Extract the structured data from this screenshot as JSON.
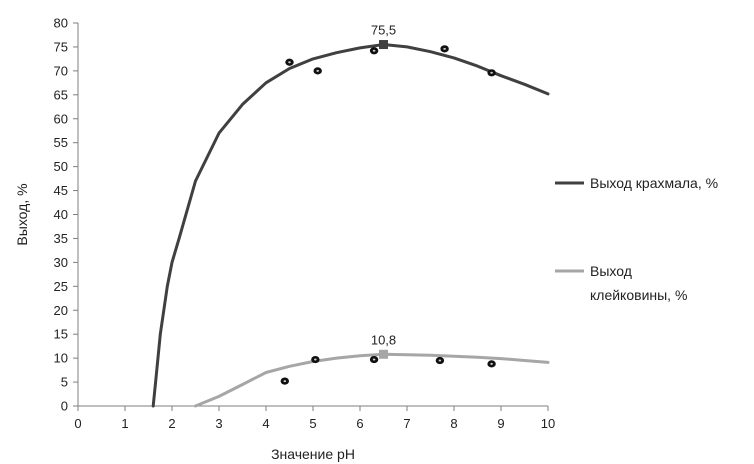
{
  "chart_data": {
    "type": "line",
    "xlabel": "Значение pH",
    "ylabel": "Выход, %",
    "xlim": [
      0,
      10
    ],
    "ylim": [
      0,
      80
    ],
    "x_ticks": [
      0,
      1,
      2,
      3,
      4,
      5,
      6,
      7,
      8,
      9,
      10
    ],
    "y_ticks": [
      0,
      5,
      10,
      15,
      20,
      25,
      30,
      35,
      40,
      45,
      50,
      55,
      60,
      65,
      70,
      75,
      80
    ],
    "grid": false,
    "legend_position": "right",
    "series": [
      {
        "name": "Выход крахмала, %",
        "name_lines": [
          "Выход крахмала, %"
        ],
        "color": "#404040",
        "x": [
          1.6,
          1.65,
          1.75,
          1.9,
          2.0,
          2.15,
          2.5,
          3.0,
          3.5,
          4.0,
          4.5,
          5.0,
          5.5,
          6.0,
          6.5,
          7.0,
          7.5,
          8.0,
          8.5,
          9.0,
          9.5,
          10.0
        ],
        "values": [
          0,
          5,
          15,
          25,
          30,
          35,
          47,
          57,
          63,
          67.5,
          70.5,
          72.5,
          73.8,
          74.8,
          75.5,
          75,
          74,
          72.7,
          71,
          69,
          67.2,
          65.2
        ],
        "peak": {
          "x": 6.5,
          "y": 75.5,
          "label": "75,5"
        },
        "points": [
          {
            "x": 4.5,
            "y": 71.8
          },
          {
            "x": 5.1,
            "y": 70.0
          },
          {
            "x": 6.3,
            "y": 74.2
          },
          {
            "x": 7.8,
            "y": 74.6
          },
          {
            "x": 8.8,
            "y": 69.6
          }
        ]
      },
      {
        "name": "Выход клейковины, %",
        "name_lines": [
          "Выход",
          "клейковины, %"
        ],
        "color": "#a6a6a6",
        "x": [
          2.5,
          3.0,
          3.5,
          4.0,
          4.5,
          5.0,
          5.5,
          6.0,
          6.5,
          7.0,
          7.5,
          8.0,
          8.5,
          9.0,
          9.5,
          10.0
        ],
        "values": [
          0,
          2,
          4.5,
          7,
          8.3,
          9.3,
          10,
          10.5,
          10.8,
          10.7,
          10.6,
          10.4,
          10.2,
          9.9,
          9.5,
          9.1
        ],
        "peak": {
          "x": 6.5,
          "y": 10.8,
          "label": "10,8"
        },
        "points": [
          {
            "x": 4.4,
            "y": 5.2
          },
          {
            "x": 5.05,
            "y": 9.7
          },
          {
            "x": 6.3,
            "y": 9.7
          },
          {
            "x": 7.7,
            "y": 9.5
          },
          {
            "x": 8.8,
            "y": 8.8
          }
        ]
      }
    ]
  }
}
